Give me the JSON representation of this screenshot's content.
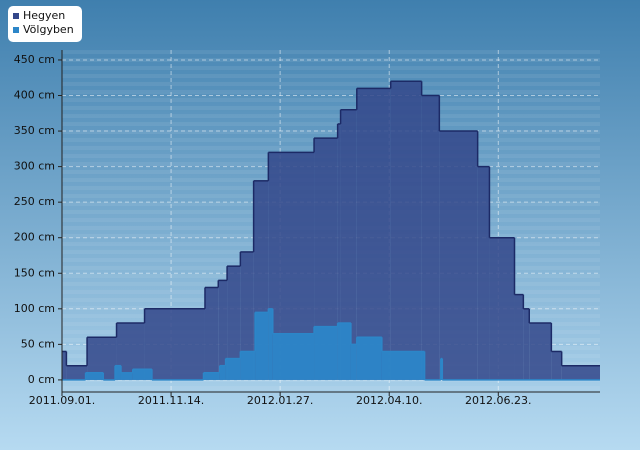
{
  "chart_data": {
    "type": "step-area",
    "xlim": [
      "2011-09-01",
      "2012-08-31"
    ],
    "xticks": [
      {
        "value": "2011-09-01",
        "label": "2011.09.01."
      },
      {
        "value": "2011-11-14",
        "label": "2011.11.14."
      },
      {
        "value": "2012-01-27",
        "label": "2012.01.27."
      },
      {
        "value": "2012-04-10",
        "label": "2012.04.10."
      },
      {
        "value": "2012-06-23",
        "label": "2012.06.23."
      }
    ],
    "ylim": [
      -17,
      464
    ],
    "yticks": [
      {
        "value": 0,
        "label": "0 cm"
      },
      {
        "value": 50,
        "label": "50 cm"
      },
      {
        "value": 100,
        "label": "100 cm"
      },
      {
        "value": 150,
        "label": "150 cm"
      },
      {
        "value": 200,
        "label": "200 cm"
      },
      {
        "value": 250,
        "label": "250 cm"
      },
      {
        "value": 300,
        "label": "300 cm"
      },
      {
        "value": 350,
        "label": "350 cm"
      },
      {
        "value": 400,
        "label": "400 cm"
      },
      {
        "value": 450,
        "label": "450 cm"
      }
    ],
    "grid": true,
    "legend": "top-left",
    "series": [
      {
        "name": "Hegyen",
        "color": "#33478a",
        "line_color": "#1c2a66",
        "x": [
          "2011-09-01",
          "2011-09-04",
          "2011-09-18",
          "2011-10-08",
          "2011-10-27",
          "2011-12-07",
          "2011-12-16",
          "2011-12-22",
          "2011-12-31",
          "2012-01-09",
          "2012-01-19",
          "2012-02-19",
          "2012-03-06",
          "2012-03-08",
          "2012-03-19",
          "2012-04-11",
          "2012-05-02",
          "2012-05-14",
          "2012-06-09",
          "2012-06-17",
          "2012-07-04",
          "2012-07-10",
          "2012-07-14",
          "2012-07-29",
          "2012-08-05"
        ],
        "values": [
          40,
          20,
          60,
          80,
          100,
          130,
          140,
          160,
          180,
          280,
          320,
          340,
          360,
          380,
          410,
          420,
          400,
          350,
          300,
          200,
          120,
          100,
          80,
          40,
          20
        ]
      },
      {
        "name": "Völgyben",
        "color": "#2c86c8",
        "line_color": "#2c86c8",
        "x": [
          "2011-09-01",
          "2011-09-17",
          "2011-09-29",
          "2011-10-07",
          "2011-10-11",
          "2011-10-19",
          "2011-11-01",
          "2011-12-06",
          "2011-12-17",
          "2011-12-21",
          "2011-12-31",
          "2012-01-10",
          "2012-01-19",
          "2012-01-22",
          "2012-02-19",
          "2012-03-06",
          "2012-03-15",
          "2012-03-19",
          "2012-04-05",
          "2012-05-04",
          "2012-05-15",
          "2012-05-16"
        ],
        "values": [
          0,
          10,
          0,
          20,
          10,
          15,
          0,
          10,
          20,
          30,
          40,
          95,
          100,
          65,
          75,
          80,
          50,
          60,
          40,
          0,
          30,
          0
        ]
      }
    ]
  }
}
